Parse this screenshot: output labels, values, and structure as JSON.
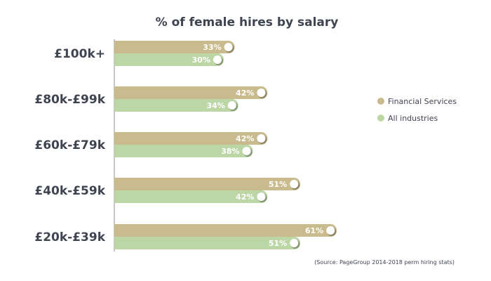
{
  "chart_data": {
    "type": "bar",
    "orientation": "horizontal",
    "title": "% of female hires by salary",
    "categories": [
      "£100k+",
      "£80k-£99k",
      "£60k-£79k",
      "£40k-£59k",
      "£20k-£39k"
    ],
    "series": [
      {
        "name": "Financial Services",
        "color": "#c9bb8e",
        "values": [
          33,
          42,
          42,
          51,
          61
        ],
        "labels": [
          "33%",
          "42%",
          "42%",
          "51%",
          "61%"
        ]
      },
      {
        "name": "All industries",
        "color": "#bcd6a6",
        "values": [
          30,
          34,
          38,
          42,
          51
        ],
        "labels": [
          "30%",
          "34%",
          "38%",
          "42%",
          "51%"
        ]
      }
    ],
    "legend_position": "right",
    "grid": false,
    "source": "(Source: PageGroup 2014-2018 perm hiring stats)"
  }
}
